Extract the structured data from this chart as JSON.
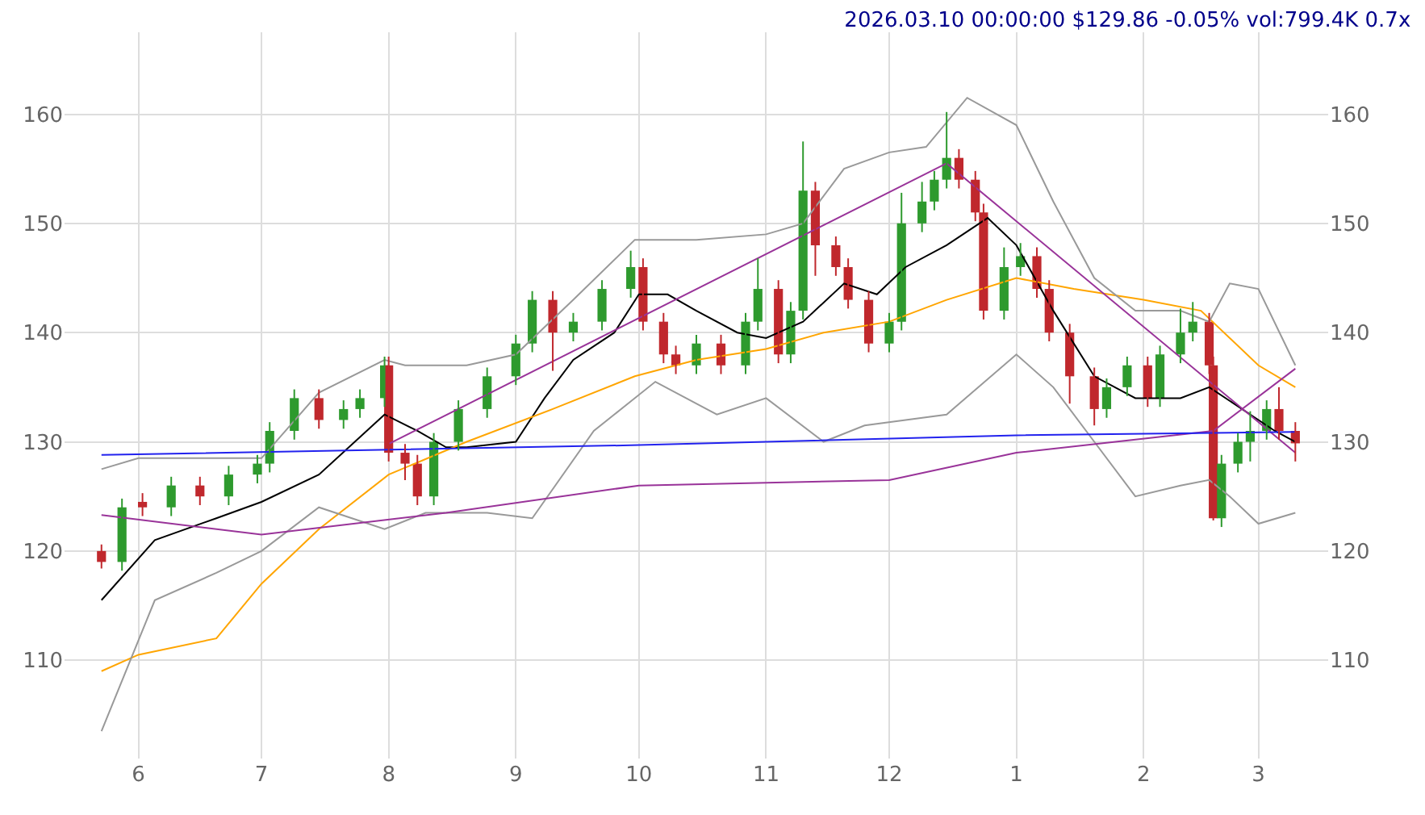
{
  "chart_data": {
    "type": "candlestick",
    "title": "2026.03.10 00:00:00 $129.86 -0.05% vol:799.4K 0.7x",
    "x": [
      "2025-05-23",
      "2025-05-28",
      "2025-06-02",
      "2025-06-09",
      "2025-06-16",
      "2025-06-23",
      "2025-06-30",
      "2025-07-03",
      "2025-07-09",
      "2025-07-15",
      "2025-07-21",
      "2025-07-25",
      "2025-07-31",
      "2025-08-01",
      "2025-08-05",
      "2025-08-08",
      "2025-08-12",
      "2025-08-18",
      "2025-08-25",
      "2025-09-01",
      "2025-09-05",
      "2025-09-10",
      "2025-09-15",
      "2025-09-22",
      "2025-09-29",
      "2025-10-02",
      "2025-10-07",
      "2025-10-10",
      "2025-10-15",
      "2025-10-21",
      "2025-10-27",
      "2025-10-30",
      "2025-11-04",
      "2025-11-07",
      "2025-11-10",
      "2025-11-13",
      "2025-11-18",
      "2025-11-21",
      "2025-11-26",
      "2025-12-01",
      "2025-12-04",
      "2025-12-09",
      "2025-12-12",
      "2025-12-15",
      "2025-12-18",
      "2025-12-22",
      "2025-12-24",
      "2025-12-29",
      "2026-01-02",
      "2026-01-06",
      "2026-01-09",
      "2026-01-14",
      "2026-01-20",
      "2026-01-23",
      "2026-01-28",
      "2026-02-02",
      "2026-02-05",
      "2026-02-10",
      "2026-02-13",
      "2026-02-17",
      "2026-02-18",
      "2026-02-20",
      "2026-02-24",
      "2026-02-27",
      "2026-03-03",
      "2026-03-06",
      "2026-03-10"
    ],
    "ohlc": [
      [
        120,
        120.6,
        118.4,
        119
      ],
      [
        119,
        124.8,
        118.2,
        124
      ],
      [
        124.5,
        125.3,
        123.2,
        124
      ],
      [
        124,
        126.8,
        123.2,
        126
      ],
      [
        126,
        126.8,
        124.2,
        125
      ],
      [
        125,
        127.8,
        124.2,
        127
      ],
      [
        127,
        128.8,
        126.2,
        128
      ],
      [
        128,
        131.8,
        127.2,
        131
      ],
      [
        131,
        134.8,
        130.2,
        134
      ],
      [
        134,
        134.8,
        131.2,
        132
      ],
      [
        132,
        133.8,
        131.2,
        133
      ],
      [
        133,
        134.8,
        132.2,
        134
      ],
      [
        134,
        137.8,
        133.2,
        137
      ],
      [
        137,
        137.8,
        128.2,
        129
      ],
      [
        129,
        129.8,
        126.5,
        128
      ],
      [
        128,
        128.8,
        124.2,
        125
      ],
      [
        125,
        130.8,
        124.2,
        130
      ],
      [
        130,
        133.8,
        129.2,
        133
      ],
      [
        133,
        136.8,
        132.2,
        136
      ],
      [
        136,
        139.8,
        135.2,
        139
      ],
      [
        139,
        143.8,
        138.2,
        143
      ],
      [
        143,
        143.8,
        136.5,
        140
      ],
      [
        140,
        141.8,
        139.2,
        141
      ],
      [
        141,
        144.8,
        140.2,
        144
      ],
      [
        144,
        147.5,
        143.2,
        146
      ],
      [
        146,
        146.8,
        140.2,
        141
      ],
      [
        141,
        141.8,
        137.2,
        138
      ],
      [
        138,
        138.8,
        136.2,
        137
      ],
      [
        137,
        139.8,
        136.2,
        139
      ],
      [
        139,
        139.8,
        136.2,
        137
      ],
      [
        137,
        141.8,
        136.2,
        141
      ],
      [
        141,
        146.8,
        140.2,
        144
      ],
      [
        144,
        144.8,
        137.2,
        138
      ],
      [
        138,
        142.8,
        137.2,
        142
      ],
      [
        142,
        157.5,
        141.2,
        153
      ],
      [
        153,
        153.8,
        145.2,
        148
      ],
      [
        148,
        148.8,
        145.2,
        146
      ],
      [
        146,
        146.8,
        142.2,
        143
      ],
      [
        143,
        143.8,
        138.2,
        139
      ],
      [
        139,
        141.8,
        138.2,
        141
      ],
      [
        141,
        152.8,
        140.2,
        150
      ],
      [
        150,
        153.8,
        149.2,
        152
      ],
      [
        152,
        154.8,
        151.2,
        154
      ],
      [
        154,
        160.2,
        153.2,
        156
      ],
      [
        156,
        156.8,
        153.2,
        154
      ],
      [
        154,
        154.8,
        150.2,
        151
      ],
      [
        151,
        151.8,
        141.2,
        142
      ],
      [
        142,
        147.8,
        141.2,
        146
      ],
      [
        146,
        148.2,
        145.2,
        147
      ],
      [
        147,
        147.8,
        143.2,
        144
      ],
      [
        144,
        144.8,
        139.2,
        140
      ],
      [
        140,
        140.8,
        133.5,
        136
      ],
      [
        136,
        136.8,
        131.5,
        133
      ],
      [
        133,
        135.8,
        132.2,
        135
      ],
      [
        135,
        137.8,
        134.2,
        137
      ],
      [
        137,
        137.8,
        133.2,
        134
      ],
      [
        134,
        138.8,
        133.2,
        138
      ],
      [
        138,
        142.2,
        137.2,
        140
      ],
      [
        140,
        142.8,
        139.2,
        141
      ],
      [
        141,
        141.8,
        136.2,
        137
      ],
      [
        137,
        137.8,
        122.8,
        123
      ],
      [
        123,
        128.8,
        122.2,
        128
      ],
      [
        128,
        130.8,
        127.2,
        130
      ],
      [
        130,
        132.8,
        128.2,
        131
      ],
      [
        131,
        133.8,
        130.2,
        133
      ],
      [
        133,
        135,
        130.2,
        131
      ],
      [
        131,
        131.8,
        128.2,
        129.86
      ]
    ],
    "series": [
      {
        "type": "line",
        "color": "#000000",
        "x": [
          "2025-05-23",
          "2025-06-05",
          "2025-06-20",
          "2025-07-01",
          "2025-07-15",
          "2025-07-31",
          "2025-08-08",
          "2025-08-15",
          "2025-08-20",
          "2025-09-01",
          "2025-09-08",
          "2025-09-15",
          "2025-09-25",
          "2025-10-01",
          "2025-10-08",
          "2025-10-15",
          "2025-10-25",
          "2025-11-01",
          "2025-11-10",
          "2025-11-20",
          "2025-11-28",
          "2025-12-05",
          "2025-12-15",
          "2025-12-25",
          "2026-01-01",
          "2026-01-10",
          "2026-01-20",
          "2026-01-30",
          "2026-02-10",
          "2026-02-17",
          "2026-02-25",
          "2026-03-05",
          "2026-03-10"
        ],
        "values": [
          115.5,
          121,
          123,
          124.5,
          127,
          132.5,
          131,
          129.5,
          129.5,
          130,
          134,
          137.5,
          140,
          143.5,
          143.5,
          142,
          140,
          139.5,
          141,
          144.5,
          143.5,
          146,
          148,
          150.5,
          148,
          142,
          136,
          134,
          134,
          135,
          133,
          131,
          130
        ]
      },
      {
        "type": "line",
        "color": "#ffa500",
        "x": [
          "2025-05-23",
          "2025-06-01",
          "2025-06-20",
          "2025-07-01",
          "2025-07-15",
          "2025-08-01",
          "2025-08-20",
          "2025-09-10",
          "2025-09-30",
          "2025-10-15",
          "2025-11-01",
          "2025-11-15",
          "2025-12-01",
          "2025-12-15",
          "2026-01-01",
          "2026-01-15",
          "2026-02-01",
          "2026-02-15",
          "2026-03-01",
          "2026-03-10"
        ],
        "values": [
          109,
          110.5,
          112,
          117,
          122,
          127,
          130,
          133,
          136,
          137.5,
          138.5,
          140,
          141,
          143,
          145,
          144,
          143,
          142,
          137,
          135
        ]
      },
      {
        "type": "line",
        "color": "#999999",
        "x": [
          "2025-05-23",
          "2025-06-01",
          "2025-07-01",
          "2025-07-15",
          "2025-07-31",
          "2025-08-05",
          "2025-08-20",
          "2025-09-01",
          "2025-09-15",
          "2025-09-30",
          "2025-10-15",
          "2025-11-01",
          "2025-11-10",
          "2025-11-20",
          "2025-12-01",
          "2025-12-10",
          "2025-12-20",
          "2026-01-01",
          "2026-01-10",
          "2026-01-20",
          "2026-01-30",
          "2026-02-10",
          "2026-02-17",
          "2026-02-22",
          "2026-03-01",
          "2026-03-10"
        ],
        "values": [
          127.5,
          128.5,
          128.5,
          134.5,
          137.5,
          137,
          137,
          138,
          143,
          148.5,
          148.5,
          149,
          150,
          155,
          156.5,
          157,
          161.5,
          159,
          152,
          145,
          142,
          142,
          141,
          144.5,
          144,
          137
        ]
      },
      {
        "type": "line",
        "color": "#999999",
        "x": [
          "2025-05-23",
          "2025-06-05",
          "2025-06-20",
          "2025-07-01",
          "2025-07-15",
          "2025-07-31",
          "2025-08-10",
          "2025-08-25",
          "2025-09-05",
          "2025-09-20",
          "2025-10-05",
          "2025-10-20",
          "2025-11-01",
          "2025-11-15",
          "2025-11-25",
          "2025-12-05",
          "2025-12-15",
          "2026-01-01",
          "2026-01-10",
          "2026-01-20",
          "2026-01-30",
          "2026-02-10",
          "2026-02-17",
          "2026-02-22",
          "2026-03-01",
          "2026-03-10"
        ],
        "values": [
          103.5,
          115.5,
          118,
          120,
          124,
          122,
          123.5,
          123.5,
          123,
          131,
          135.5,
          132.5,
          134,
          130,
          131.5,
          132,
          132.5,
          138,
          135,
          130,
          125,
          126,
          126.5,
          125,
          122.5,
          123.5
        ]
      },
      {
        "type": "line",
        "color": "#993399",
        "x": [
          "2025-08-01",
          "2025-12-15",
          "2026-03-10"
        ],
        "values": [
          129.8,
          155.5,
          129
        ]
      },
      {
        "type": "line",
        "color": "#993399",
        "x": [
          "2025-05-23",
          "2025-07-01",
          "2025-08-15",
          "2025-10-01",
          "2025-12-01",
          "2026-01-01",
          "2026-02-18",
          "2026-03-10"
        ],
        "values": [
          123.3,
          121.5,
          123.5,
          126,
          126.5,
          129,
          131,
          136.7
        ]
      },
      {
        "type": "line",
        "color": "#2222ee",
        "x": [
          "2025-05-23",
          "2025-10-01",
          "2026-01-01",
          "2026-03-10"
        ],
        "values": [
          128.8,
          129.7,
          130.6,
          130.9
        ]
      }
    ],
    "xlim": [
      "2025-05-14",
      "2026-03-18"
    ],
    "xticks": [
      {
        "value": "2025-06-01",
        "label": "6"
      },
      {
        "value": "2025-07-01",
        "label": "7"
      },
      {
        "value": "2025-08-01",
        "label": "8"
      },
      {
        "value": "2025-09-01",
        "label": "9"
      },
      {
        "value": "2025-10-01",
        "label": "10"
      },
      {
        "value": "2025-11-01",
        "label": "11"
      },
      {
        "value": "2025-12-01",
        "label": "12"
      },
      {
        "value": "2026-01-01",
        "label": "1"
      },
      {
        "value": "2026-02-01",
        "label": "2"
      },
      {
        "value": "2026-03-01",
        "label": "3"
      }
    ],
    "ylim": [
      101,
      167.5
    ],
    "yticks": [
      110,
      120,
      130,
      140,
      150,
      160
    ],
    "y2lim": [
      101,
      167.5
    ],
    "y2ticks": [
      110,
      120,
      130,
      140,
      150,
      160
    ],
    "grid": true,
    "line_style": "solid"
  }
}
